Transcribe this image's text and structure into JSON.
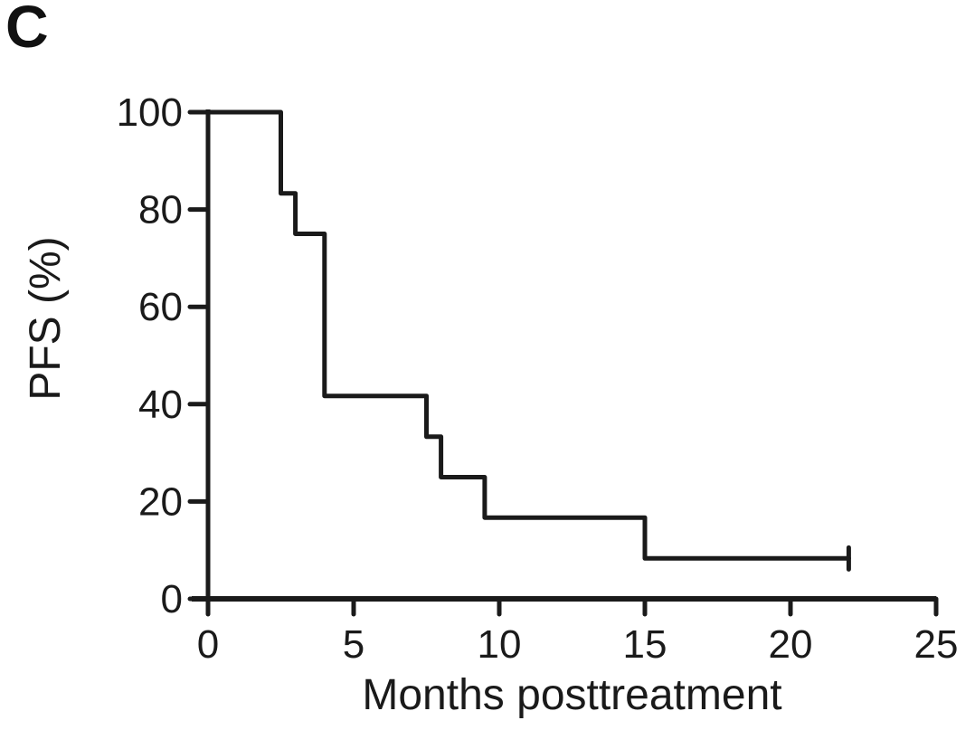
{
  "panel": {
    "label": "C"
  },
  "colors": {
    "background": "#ffffff",
    "axis": "#1a1a1a",
    "text": "#1a1a1a",
    "line": "#1a1a1a"
  },
  "chart_data": {
    "type": "line",
    "subtype": "kaplan-meier-step",
    "title": "",
    "xlabel": "Months posttreatment",
    "ylabel": "PFS (%)",
    "xlim": [
      0,
      25
    ],
    "ylim": [
      0,
      100
    ],
    "x_ticks": [
      0,
      5,
      10,
      15,
      20,
      25
    ],
    "y_ticks": [
      0,
      20,
      40,
      60,
      80,
      100
    ],
    "grid": false,
    "legend": "none",
    "series": [
      {
        "name": "PFS",
        "points": [
          [
            0,
            100
          ],
          [
            2.5,
            100
          ],
          [
            2.5,
            83.3
          ],
          [
            3,
            83.3
          ],
          [
            3,
            75
          ],
          [
            4,
            75
          ],
          [
            4,
            41.7
          ],
          [
            7.5,
            41.7
          ],
          [
            7.5,
            33.3
          ],
          [
            8,
            33.3
          ],
          [
            8,
            25
          ],
          [
            9.5,
            25
          ],
          [
            9.5,
            16.7
          ],
          [
            15,
            16.7
          ],
          [
            15,
            8.3
          ],
          [
            22,
            8.3
          ]
        ],
        "censor_marks": [
          [
            22,
            8.3
          ]
        ]
      }
    ]
  }
}
